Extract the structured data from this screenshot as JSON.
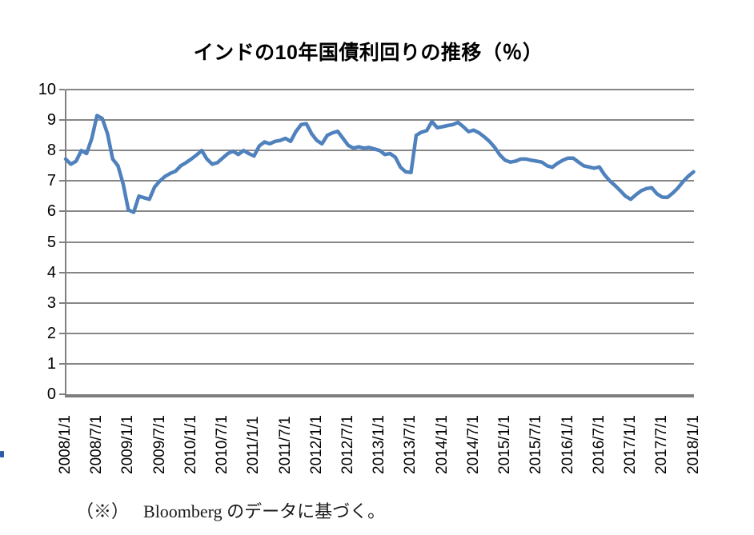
{
  "title": "インドの10年国債利回りの推移（％）",
  "footnote": {
    "marker": "（※）",
    "text": "Bloomberg のデータに基づく。"
  },
  "chart_data": {
    "type": "line",
    "title": "インドの10年国債利回りの推移（％）",
    "x_start": "2008/1/1",
    "x_end": "2018/1/1",
    "frequency": "monthly",
    "x_tick_labels": [
      "2008/1/1",
      "2008/7/1",
      "2009/1/1",
      "2009/7/1",
      "2010/1/1",
      "2010/7/1",
      "2011/1/1",
      "2011/7/1",
      "2012/1/1",
      "2012/7/1",
      "2013/1/1",
      "2013/7/1",
      "2014/1/1",
      "2014/7/1",
      "2015/1/1",
      "2015/7/1",
      "2016/1/1",
      "2016/7/1",
      "2017/1/1",
      "2017/7/1",
      "2018/1/1"
    ],
    "values": [
      7.72,
      7.55,
      7.65,
      8.0,
      7.9,
      8.4,
      9.15,
      9.05,
      8.55,
      7.72,
      7.5,
      6.9,
      6.05,
      5.97,
      6.5,
      6.45,
      6.4,
      6.8,
      7.0,
      7.15,
      7.25,
      7.32,
      7.5,
      7.6,
      7.72,
      7.85,
      8.0,
      7.72,
      7.55,
      7.6,
      7.75,
      7.9,
      7.98,
      7.87,
      8.0,
      7.9,
      7.82,
      8.15,
      8.28,
      8.22,
      8.3,
      8.33,
      8.4,
      8.3,
      8.62,
      8.85,
      8.88,
      8.55,
      8.33,
      8.22,
      8.5,
      8.58,
      8.63,
      8.4,
      8.17,
      8.08,
      8.12,
      8.08,
      8.1,
      8.05,
      8.0,
      7.87,
      7.9,
      7.78,
      7.45,
      7.3,
      7.28,
      8.5,
      8.6,
      8.65,
      8.95,
      8.75,
      8.78,
      8.82,
      8.85,
      8.92,
      8.78,
      8.62,
      8.67,
      8.58,
      8.45,
      8.3,
      8.1,
      7.85,
      7.68,
      7.62,
      7.65,
      7.72,
      7.72,
      7.68,
      7.65,
      7.62,
      7.5,
      7.45,
      7.58,
      7.68,
      7.75,
      7.75,
      7.62,
      7.5,
      7.46,
      7.42,
      7.46,
      7.2,
      7.0,
      6.85,
      6.68,
      6.5,
      6.4,
      6.55,
      6.68,
      6.75,
      6.78,
      6.58,
      6.47,
      6.46,
      6.6,
      6.77,
      6.98,
      7.16,
      7.3
    ],
    "ylim": [
      0,
      10
    ],
    "y_ticks": [
      0,
      1,
      2,
      3,
      4,
      5,
      6,
      7,
      8,
      9,
      10
    ],
    "grid": "horizontal",
    "legend": "none",
    "line_color": "#4F81BD",
    "gridline_color": "#878787",
    "axis_color": "#808080"
  }
}
